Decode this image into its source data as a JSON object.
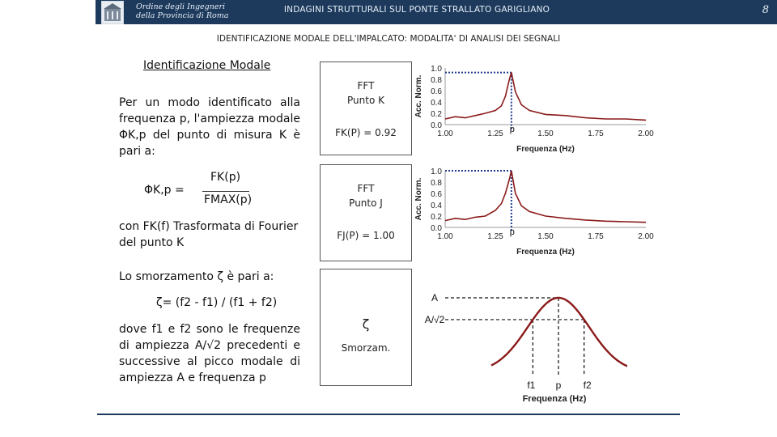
{
  "header": {
    "org_line1": "Ordine degli Ingegneri",
    "org_line2": "della Provincia di Roma",
    "title": "INDAGINI STRUTTURALI SUL PONTE STRALLATO GARIGLIANO",
    "page_number": "8"
  },
  "subtitle": "IDENTIFICAZIONE MODALE DELL'IMPALCATO: MODALITA' DI ANALISI DEI SEGNALI",
  "section_title": "Identificazione Modale",
  "paragraph1": "Per un modo identificato alla frequenza p, l'ampiezza modale ΦK,p del punto di misura K è pari a:",
  "equation": {
    "lhs": "ΦK,p =",
    "numerator": "FK(p)",
    "denominator": "FMAX(p)"
  },
  "paragraph2": "con FK(f) Trasformata di Fourier del punto K",
  "damping_intro": "Lo smorzamento ζ è pari a:",
  "damping_formula": "ζ= (f2 - f1) / (f1 + f2)",
  "paragraph3": "dove f1 e f2 sono le frequenze di ampiezza A/√2 precedenti e successive al picco modale di ampiezza A e frequenza p",
  "box1": {
    "line1": "FFT",
    "line2": "Punto K",
    "value": "FK(P) = 0.92"
  },
  "box2": {
    "line1": "FFT",
    "line2": "Punto J",
    "value": "FJ(P) = 1.00"
  },
  "box3": {
    "symbol": "ζ",
    "label": "Smorzam."
  },
  "colors": {
    "header": "#1d3a5c",
    "curve": "#8b1a1a",
    "dotted": "#1f3a8a"
  },
  "chart_data": [
    {
      "type": "line",
      "ylabel": "Acc. Norm.",
      "xlabel": "Frequenza (Hz)",
      "xlim": [
        1.0,
        2.0
      ],
      "ylim": [
        0.0,
        1.0
      ],
      "x_ticks": [
        "1.00",
        "1.25",
        "1.50",
        "1.75",
        "2.00"
      ],
      "y_ticks": [
        "0.0",
        "0.2",
        "0.4",
        "0.6",
        "0.8",
        "1.0"
      ],
      "peak_label": "p",
      "peak": {
        "x": 1.33,
        "y": 0.92
      },
      "x": [
        1.0,
        1.05,
        1.1,
        1.15,
        1.2,
        1.25,
        1.28,
        1.3,
        1.32,
        1.33,
        1.35,
        1.38,
        1.42,
        1.5,
        1.6,
        1.7,
        1.8,
        1.9,
        2.0
      ],
      "y": [
        0.1,
        0.14,
        0.12,
        0.16,
        0.2,
        0.25,
        0.33,
        0.5,
        0.8,
        0.92,
        0.58,
        0.35,
        0.25,
        0.18,
        0.16,
        0.12,
        0.1,
        0.1,
        0.08
      ]
    },
    {
      "type": "line",
      "ylabel": "Acc. Norm.",
      "xlabel": "Frequenza (Hz)",
      "xlim": [
        1.0,
        2.0
      ],
      "ylim": [
        0.0,
        1.0
      ],
      "x_ticks": [
        "1.00",
        "1.25",
        "1.50",
        "1.75",
        "2.00"
      ],
      "y_ticks": [
        "0.0",
        "0.2",
        "0.4",
        "0.6",
        "0.8",
        "1.0"
      ],
      "peak_label": "p",
      "peak": {
        "x": 1.33,
        "y": 1.0
      },
      "x": [
        1.0,
        1.05,
        1.1,
        1.15,
        1.2,
        1.25,
        1.28,
        1.3,
        1.32,
        1.33,
        1.35,
        1.38,
        1.42,
        1.5,
        1.6,
        1.7,
        1.8,
        1.9,
        2.0
      ],
      "y": [
        0.12,
        0.16,
        0.14,
        0.18,
        0.2,
        0.3,
        0.42,
        0.6,
        0.85,
        1.0,
        0.6,
        0.38,
        0.28,
        0.2,
        0.16,
        0.13,
        0.11,
        0.1,
        0.09
      ]
    },
    {
      "type": "line",
      "xlabel": "Frequenza (Hz)",
      "peak_label": "A",
      "level_label": "A/√2",
      "marker_labels": [
        "f1",
        "p",
        "f2"
      ]
    }
  ]
}
